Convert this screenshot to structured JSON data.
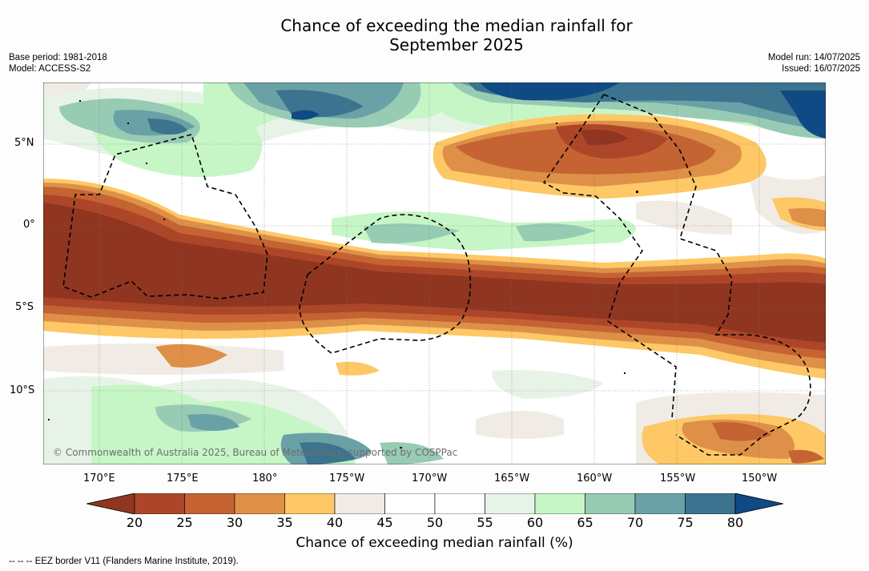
{
  "title_line1": "Chance of exceeding the median rainfall for",
  "title_line2": "September 2025",
  "meta_left": {
    "base_period": "Base period: 1981-2018",
    "model": "Model: ACCESS-S2"
  },
  "meta_right": {
    "model_run": "Model run: 14/07/2025",
    "issued": "Issued: 16/07/2025"
  },
  "lat_labels": [
    "5°N",
    "0°",
    "5°S",
    "10°S"
  ],
  "lon_labels": [
    "170°E",
    "175°E",
    "180°",
    "175°W",
    "170°W",
    "165°W",
    "160°W",
    "155°W",
    "150°W"
  ],
  "copyright": "© Commonwealth of Australia 2025, Bureau of Meteorology, supported by COSPPac",
  "colorbar": {
    "title": "Chance of exceeding median rainfall (%)",
    "ticks": [
      "20",
      "25",
      "30",
      "35",
      "40",
      "45",
      "50",
      "55",
      "60",
      "65",
      "70",
      "75",
      "80"
    ],
    "colors": [
      "#8f3520",
      "#ad4628",
      "#c56332",
      "#de9048",
      "#fdc865",
      "#f0ebe5",
      "#ffffff",
      "#ffffff",
      "#e8f3e8",
      "#c6f6c6",
      "#98cbb4",
      "#6aa1a6",
      "#3c748f",
      "#0f4a84"
    ]
  },
  "footnote": "-- -- -- EEZ border V11 (Flanders Marine Institute, 2019)."
}
